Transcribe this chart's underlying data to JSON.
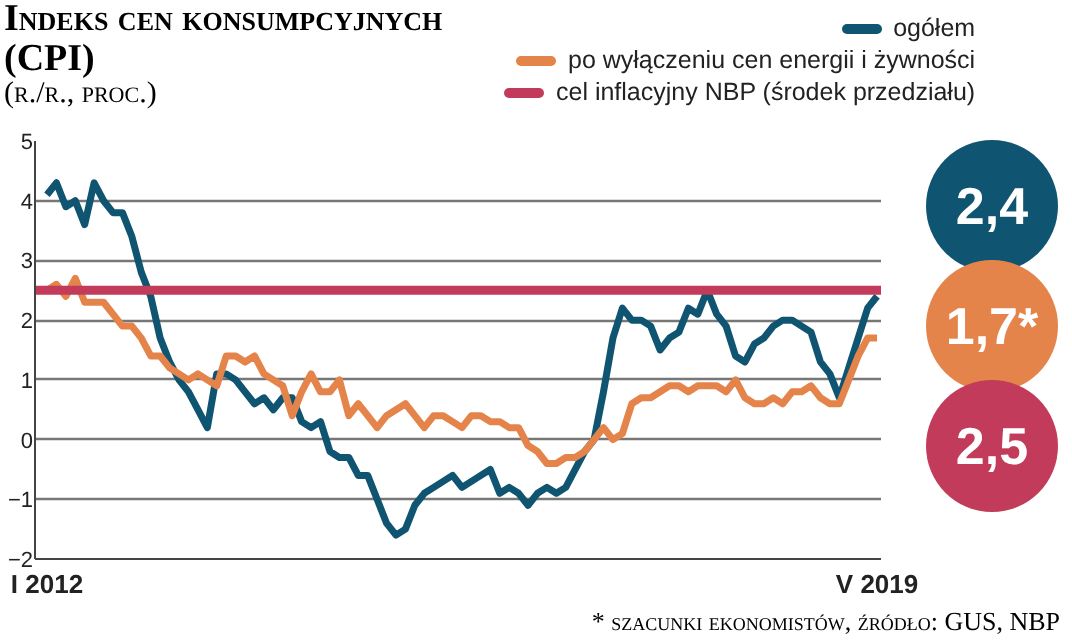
{
  "chart_data": {
    "type": "line",
    "title": "Indeks cen konsumpcyjnych (CPI)",
    "subtitle": "(r./r., proc.)",
    "categories": [
      "I 2012",
      null,
      null,
      null,
      null,
      null,
      null,
      null,
      null,
      null,
      null,
      null,
      null,
      null,
      null,
      null,
      null,
      null,
      null,
      null,
      null,
      null,
      null,
      null,
      null,
      null,
      null,
      null,
      null,
      null,
      null,
      null,
      null,
      null,
      null,
      null,
      null,
      null,
      null,
      null,
      null,
      null,
      null,
      null,
      null,
      null,
      null,
      null,
      null,
      null,
      null,
      null,
      null,
      null,
      null,
      null,
      null,
      null,
      null,
      null,
      null,
      null,
      null,
      null,
      null,
      null,
      null,
      null,
      null,
      null,
      null,
      null,
      null,
      null,
      null,
      null,
      null,
      null,
      null,
      null,
      null,
      null,
      null,
      null,
      null,
      null,
      null,
      null,
      "V 2019"
    ],
    "series": [
      {
        "name": "ogółem",
        "color": "#0f5470",
        "values": [
          4.1,
          4.3,
          3.9,
          4.0,
          3.6,
          4.3,
          4.0,
          3.8,
          3.8,
          3.4,
          2.8,
          2.4,
          1.7,
          1.3,
          1.0,
          0.8,
          0.5,
          0.2,
          1.1,
          1.1,
          1.0,
          0.8,
          0.6,
          0.7,
          0.5,
          0.7,
          0.7,
          0.3,
          0.2,
          0.3,
          -0.2,
          -0.3,
          -0.3,
          -0.6,
          -0.6,
          -1.0,
          -1.4,
          -1.6,
          -1.5,
          -1.1,
          -0.9,
          -0.8,
          -0.7,
          -0.6,
          -0.8,
          -0.7,
          -0.6,
          -0.5,
          -0.9,
          -0.8,
          -0.9,
          -1.1,
          -0.9,
          -0.8,
          -0.9,
          -0.8,
          -0.5,
          -0.2,
          0.0,
          0.8,
          1.7,
          2.2,
          2.0,
          2.0,
          1.9,
          1.5,
          1.7,
          1.8,
          2.2,
          2.1,
          2.5,
          2.1,
          1.9,
          1.4,
          1.3,
          1.6,
          1.7,
          1.9,
          2.0,
          2.0,
          1.9,
          1.8,
          1.3,
          1.1,
          0.7,
          1.2,
          1.7,
          2.2,
          2.4
        ]
      },
      {
        "name": "po wyłączeniu cen energii i żywności",
        "color": "#e5844a",
        "values": [
          2.5,
          2.6,
          2.4,
          2.7,
          2.3,
          2.3,
          2.3,
          2.1,
          1.9,
          1.9,
          1.7,
          1.4,
          1.4,
          1.2,
          1.1,
          1.0,
          1.1,
          1.0,
          0.9,
          1.4,
          1.4,
          1.3,
          1.4,
          1.1,
          1.0,
          0.9,
          0.4,
          0.8,
          1.1,
          0.8,
          0.8,
          1.0,
          0.4,
          0.6,
          0.4,
          0.2,
          0.4,
          0.5,
          0.6,
          0.4,
          0.2,
          0.4,
          0.4,
          0.3,
          0.2,
          0.4,
          0.4,
          0.3,
          0.3,
          0.2,
          0.2,
          -0.1,
          -0.2,
          -0.4,
          -0.4,
          -0.3,
          -0.3,
          -0.2,
          0.0,
          0.2,
          0.0,
          0.1,
          0.6,
          0.7,
          0.7,
          0.8,
          0.9,
          0.9,
          0.8,
          0.9,
          0.9,
          0.9,
          0.8,
          1.0,
          0.7,
          0.6,
          0.6,
          0.7,
          0.6,
          0.8,
          0.8,
          0.9,
          0.7,
          0.6,
          0.6,
          1.0,
          1.4,
          1.7,
          1.7
        ]
      }
    ],
    "ref_lines": [
      {
        "axis": "y",
        "value": 2.5,
        "label": "cel inflacyjny NBP (środek przedziału)",
        "color": "#c23b5a"
      }
    ],
    "ylim": [
      -2,
      5
    ],
    "yticks": [
      -2,
      -1,
      0,
      1,
      2,
      3,
      4,
      5
    ],
    "grid": "y",
    "legend": "top right",
    "annotations": [
      "2,4",
      "1,7*",
      "2,5",
      "* szacunki ekonomistów, źródło: GUS, NBP"
    ]
  }
}
